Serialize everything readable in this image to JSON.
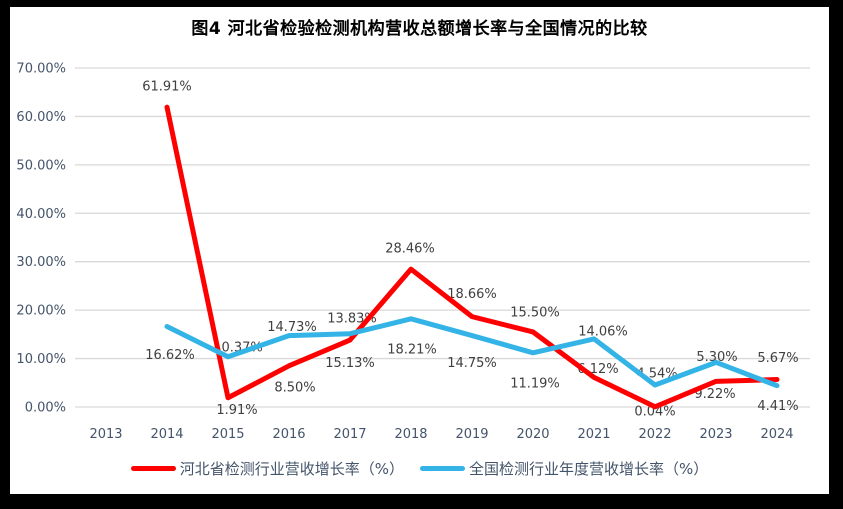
{
  "figure": {
    "title": "图4 河北省检验检测机构营收总额增长率与全国情况的比较"
  },
  "chart_data": {
    "type": "line",
    "title": "图4 河北省检验检测机构营收总额增长率与全国情况的比较",
    "categories": [
      "2013",
      "2014",
      "2015",
      "2016",
      "2017",
      "2018",
      "2019",
      "2020",
      "2021",
      "2022",
      "2023",
      "2024"
    ],
    "series": [
      {
        "name": "河北省检测行业营收增长率（%）",
        "color": "#ff0000",
        "values": [
          null,
          61.91,
          1.91,
          8.5,
          13.83,
          28.46,
          18.66,
          15.5,
          6.12,
          0.04,
          5.3,
          5.67
        ],
        "labels": [
          "",
          "61.91%",
          "1.91%",
          "8.50%",
          "13.83%",
          "28.46%",
          "18.66%",
          "15.50%",
          "6.12%",
          "0.04%",
          "5.30%",
          "5.67%"
        ]
      },
      {
        "name": "全国检测行业年度营收增长率（%）",
        "color": "#33b3e6",
        "values": [
          null,
          16.62,
          10.37,
          14.73,
          15.13,
          18.21,
          14.75,
          11.19,
          14.06,
          4.54,
          9.22,
          4.41
        ],
        "labels": [
          "",
          "16.62%",
          "10.37%",
          "14.73%",
          "15.13%",
          "18.21%",
          "14.75%",
          "11.19%",
          "14.06%",
          "4.54%",
          "9.22%",
          "4.41%"
        ]
      }
    ],
    "xlabel": "",
    "ylabel": "",
    "ylim": [
      0,
      70
    ],
    "y_tick_step": 10,
    "y_tick_labels": [
      "0.00%",
      "10.00%",
      "20.00%",
      "30.00%",
      "40.00%",
      "50.00%",
      "60.00%",
      "70.00%"
    ],
    "grid": true,
    "data_labels": true,
    "legend_position": "bottom"
  },
  "colors": {
    "grid": "#d9d9d9",
    "axis_text": "#44546a",
    "data_label_text": "#404040",
    "frame": "#000000",
    "background": "#ffffff"
  }
}
